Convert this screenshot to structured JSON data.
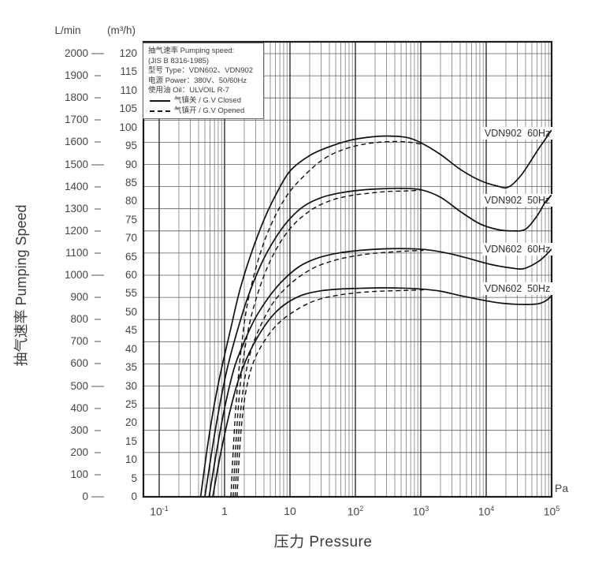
{
  "y_axis": {
    "unit_left": "L/min",
    "unit_right": "(m³/h)",
    "title": "抽气速率 Pumping Speed",
    "lmin_ticks": [
      2000,
      1900,
      1800,
      1700,
      1600,
      1500,
      1400,
      1300,
      1200,
      1100,
      1000,
      900,
      800,
      700,
      600,
      500,
      400,
      300,
      200,
      100,
      0
    ],
    "m3h_ticks": [
      120,
      115,
      110,
      105,
      100,
      95,
      90,
      85,
      80,
      75,
      70,
      65,
      60,
      55,
      50,
      45,
      40,
      35,
      30,
      25,
      20,
      15,
      10,
      5,
      0
    ]
  },
  "x_axis": {
    "title": "压力 Pressure",
    "unit": "Pa",
    "ticks": [
      {
        "base": "10",
        "exp": "-1"
      },
      {
        "base": "1"
      },
      {
        "base": "10"
      },
      {
        "base": "10",
        "exp": "2"
      },
      {
        "base": "10",
        "exp": "3"
      },
      {
        "base": "10",
        "exp": "4"
      },
      {
        "base": "10",
        "exp": "5"
      }
    ]
  },
  "legend": {
    "lines": [
      "抽气速率 Pumping speed:",
      "(JIS B 8316-1985)",
      "型号 Type：VDN602、VDN902",
      "电源 Power：380V、50/60Hz",
      "使用油 Oil：ULVOIL R-7"
    ],
    "solid_label": "气镇关 / G.V Closed",
    "dashed_label": "气镇开 / G.V Opened"
  },
  "chart_data": {
    "type": "line",
    "x_scale": "log",
    "x_unit": "Pa",
    "y_unit": "L/min",
    "xlim": [
      0.057,
      100000
    ],
    "ylim": [
      0,
      2053
    ],
    "y_major_step_lmin": 100,
    "grid": true,
    "annotations": [
      {
        "text": "VDN902  60Hz",
        "pa": 30000,
        "lmin": 1640
      },
      {
        "text": "VDN902  50Hz",
        "pa": 30000,
        "lmin": 1337
      },
      {
        "text": "VDN602  60Hz",
        "pa": 30000,
        "lmin": 1116
      },
      {
        "text": "VDN602  50Hz",
        "pa": 30000,
        "lmin": 938
      }
    ],
    "series": [
      {
        "name": "VDN902 60Hz (G.V Closed)",
        "style": "solid",
        "points": [
          [
            0.43,
            0
          ],
          [
            0.55,
            230
          ],
          [
            0.7,
            420
          ],
          [
            0.9,
            580
          ],
          [
            1.2,
            740
          ],
          [
            1.7,
            930
          ],
          [
            2.5,
            1090
          ],
          [
            4,
            1250
          ],
          [
            6,
            1360
          ],
          [
            10,
            1470
          ],
          [
            20,
            1540
          ],
          [
            40,
            1580
          ],
          [
            80,
            1608
          ],
          [
            150,
            1622
          ],
          [
            300,
            1628
          ],
          [
            600,
            1622
          ],
          [
            1000,
            1598
          ],
          [
            2000,
            1545
          ],
          [
            4000,
            1478
          ],
          [
            8000,
            1428
          ],
          [
            15000,
            1402
          ],
          [
            22000,
            1398
          ],
          [
            35000,
            1455
          ],
          [
            60000,
            1560
          ],
          [
            100000,
            1655
          ]
        ]
      },
      {
        "name": "VDN902 60Hz (G.V Opened)",
        "style": "dashed",
        "points": [
          [
            1.25,
            0
          ],
          [
            1.35,
            200
          ],
          [
            1.5,
            420
          ],
          [
            1.75,
            640
          ],
          [
            2.2,
            860
          ],
          [
            3.2,
            1060
          ],
          [
            5,
            1220
          ],
          [
            9,
            1360
          ],
          [
            18,
            1460
          ],
          [
            35,
            1530
          ],
          [
            70,
            1570
          ],
          [
            140,
            1592
          ],
          [
            280,
            1602
          ],
          [
            500,
            1603
          ],
          [
            750,
            1598
          ],
          [
            1100,
            1590
          ]
        ]
      },
      {
        "name": "VDN902 50Hz (G.V Closed)",
        "style": "solid",
        "points": [
          [
            0.5,
            0
          ],
          [
            0.65,
            220
          ],
          [
            0.85,
            420
          ],
          [
            1.1,
            580
          ],
          [
            1.5,
            730
          ],
          [
            2.2,
            890
          ],
          [
            3.5,
            1040
          ],
          [
            5.5,
            1150
          ],
          [
            9,
            1240
          ],
          [
            16,
            1310
          ],
          [
            30,
            1350
          ],
          [
            60,
            1372
          ],
          [
            120,
            1384
          ],
          [
            250,
            1390
          ],
          [
            500,
            1392
          ],
          [
            1000,
            1386
          ],
          [
            2000,
            1352
          ],
          [
            4000,
            1288
          ],
          [
            8000,
            1232
          ],
          [
            15000,
            1206
          ],
          [
            25000,
            1200
          ],
          [
            40000,
            1208
          ],
          [
            60000,
            1268
          ],
          [
            80000,
            1330
          ],
          [
            100000,
            1362
          ]
        ]
      },
      {
        "name": "VDN902 50Hz (G.V Opened)",
        "style": "dashed",
        "points": [
          [
            1.35,
            0
          ],
          [
            1.45,
            180
          ],
          [
            1.6,
            380
          ],
          [
            1.85,
            580
          ],
          [
            2.4,
            780
          ],
          [
            3.5,
            950
          ],
          [
            5.5,
            1090
          ],
          [
            10,
            1210
          ],
          [
            20,
            1290
          ],
          [
            40,
            1335
          ],
          [
            80,
            1358
          ],
          [
            160,
            1370
          ],
          [
            320,
            1378
          ],
          [
            600,
            1380
          ],
          [
            1000,
            1384
          ]
        ]
      },
      {
        "name": "VDN602 60Hz (G.V Closed)",
        "style": "solid",
        "points": [
          [
            0.58,
            0
          ],
          [
            0.75,
            200
          ],
          [
            1.0,
            400
          ],
          [
            1.4,
            580
          ],
          [
            2.0,
            700
          ],
          [
            3,
            810
          ],
          [
            5,
            910
          ],
          [
            8,
            980
          ],
          [
            14,
            1040
          ],
          [
            25,
            1075
          ],
          [
            50,
            1098
          ],
          [
            100,
            1110
          ],
          [
            200,
            1117
          ],
          [
            400,
            1120
          ],
          [
            800,
            1119
          ],
          [
            1500,
            1112
          ],
          [
            3000,
            1095
          ],
          [
            6000,
            1072
          ],
          [
            12000,
            1048
          ],
          [
            25000,
            1032
          ],
          [
            38000,
            1030
          ],
          [
            60000,
            1058
          ],
          [
            80000,
            1088
          ],
          [
            100000,
            1118
          ]
        ]
      },
      {
        "name": "VDN602 60Hz (G.V Opened)",
        "style": "dashed",
        "points": [
          [
            1.45,
            0
          ],
          [
            1.55,
            170
          ],
          [
            1.7,
            340
          ],
          [
            2.0,
            520
          ],
          [
            2.6,
            670
          ],
          [
            3.8,
            790
          ],
          [
            6,
            890
          ],
          [
            11,
            970
          ],
          [
            22,
            1030
          ],
          [
            45,
            1065
          ],
          [
            90,
            1085
          ],
          [
            180,
            1098
          ],
          [
            360,
            1105
          ],
          [
            700,
            1110
          ],
          [
            1100,
            1112
          ]
        ]
      },
      {
        "name": "VDN602 50Hz (G.V Closed)",
        "style": "solid",
        "points": [
          [
            0.66,
            0
          ],
          [
            0.85,
            180
          ],
          [
            1.15,
            360
          ],
          [
            1.6,
            520
          ],
          [
            2.3,
            640
          ],
          [
            3.5,
            740
          ],
          [
            5.5,
            820
          ],
          [
            9,
            875
          ],
          [
            16,
            912
          ],
          [
            30,
            930
          ],
          [
            60,
            938
          ],
          [
            120,
            941
          ],
          [
            250,
            943
          ],
          [
            500,
            942
          ],
          [
            1000,
            938
          ],
          [
            2000,
            928
          ],
          [
            4000,
            908
          ],
          [
            8000,
            890
          ],
          [
            15000,
            876
          ],
          [
            28000,
            869
          ],
          [
            45000,
            868
          ],
          [
            65000,
            872
          ],
          [
            85000,
            888
          ],
          [
            100000,
            908
          ]
        ]
      },
      {
        "name": "VDN602 50Hz (G.V Opened)",
        "style": "dashed",
        "points": [
          [
            1.55,
            0
          ],
          [
            1.65,
            150
          ],
          [
            1.8,
            310
          ],
          [
            2.1,
            470
          ],
          [
            2.7,
            600
          ],
          [
            4,
            700
          ],
          [
            6.5,
            780
          ],
          [
            12,
            840
          ],
          [
            24,
            885
          ],
          [
            50,
            908
          ],
          [
            100,
            920
          ],
          [
            200,
            927
          ],
          [
            400,
            930
          ],
          [
            700,
            932
          ],
          [
            1100,
            934
          ]
        ]
      }
    ]
  }
}
